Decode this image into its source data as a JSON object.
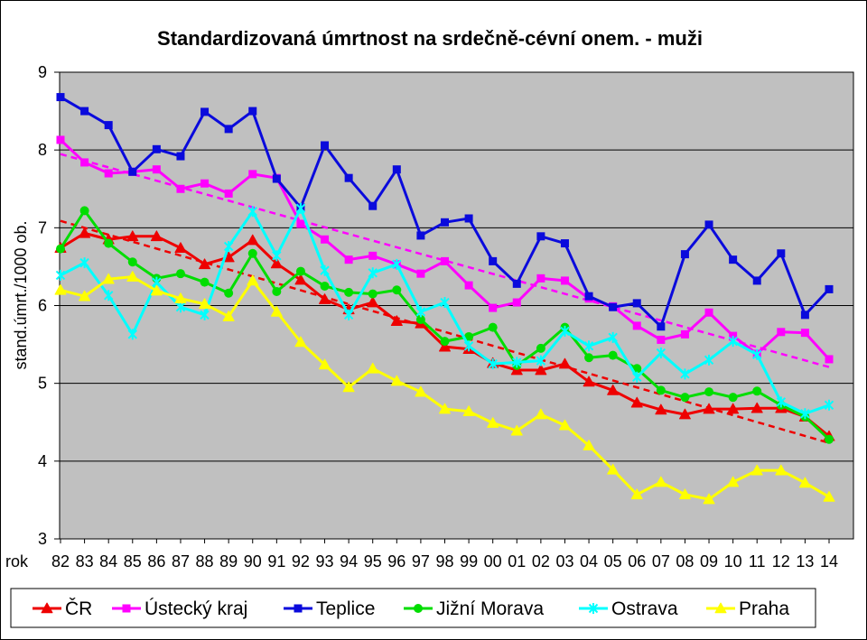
{
  "chart_data": {
    "type": "line",
    "title": "Standardizovaná úmrtnost na srdečně-cévní onem. - muži",
    "xlabel": "rok",
    "ylabel": "stand.úmrt./1000 ob.",
    "ylim": [
      3,
      9
    ],
    "yticks": [
      3,
      4,
      5,
      6,
      7,
      8,
      9
    ],
    "grid": true,
    "legend_position": "bottom",
    "plot_background": "#C0C0C0",
    "categories": [
      "82",
      "83",
      "84",
      "85",
      "86",
      "87",
      "88",
      "89",
      "90",
      "91",
      "92",
      "93",
      "94",
      "95",
      "96",
      "97",
      "98",
      "99",
      "00",
      "01",
      "02",
      "03",
      "04",
      "05",
      "06",
      "07",
      "08",
      "09",
      "10",
      "11",
      "12",
      "13",
      "14"
    ],
    "series": [
      {
        "name": "ČR",
        "color": "#EE0000",
        "marker": "triangle",
        "trendline": "linear",
        "values": [
          6.74,
          6.93,
          6.85,
          6.89,
          6.89,
          6.74,
          6.53,
          6.62,
          6.84,
          6.54,
          6.33,
          6.08,
          5.95,
          6.04,
          5.8,
          5.77,
          5.47,
          5.44,
          5.26,
          5.17,
          5.17,
          5.25,
          5.02,
          4.91,
          4.75,
          4.66,
          4.6,
          4.67,
          4.67,
          4.68,
          4.68,
          4.57,
          4.32
        ]
      },
      {
        "name": "Ústecký kraj",
        "color": "#FF00FF",
        "marker": "square",
        "trendline": "linear",
        "values": [
          8.13,
          7.84,
          7.7,
          7.72,
          7.75,
          7.5,
          7.57,
          7.44,
          7.69,
          7.64,
          7.05,
          6.85,
          6.59,
          6.64,
          6.53,
          6.41,
          6.57,
          6.26,
          5.97,
          6.04,
          6.35,
          6.32,
          6.09,
          5.99,
          5.74,
          5.56,
          5.63,
          5.91,
          5.61,
          5.38,
          5.66,
          5.65,
          5.31
        ]
      },
      {
        "name": "Teplice",
        "color": "#0A0ADC",
        "marker": "square",
        "values": [
          8.68,
          8.5,
          8.32,
          7.72,
          8.01,
          7.92,
          8.49,
          8.27,
          8.5,
          7.63,
          7.26,
          8.06,
          7.64,
          7.28,
          7.75,
          6.9,
          7.07,
          7.12,
          6.57,
          6.28,
          6.89,
          6.8,
          6.12,
          5.98,
          6.03,
          5.73,
          6.66,
          7.04,
          6.59,
          6.32,
          6.67,
          5.88,
          6.21
        ]
      },
      {
        "name": "Jižní Morava",
        "color": "#00DD00",
        "marker": "circle",
        "values": [
          6.73,
          7.22,
          6.8,
          6.56,
          6.35,
          6.41,
          6.3,
          6.16,
          6.67,
          6.18,
          6.44,
          6.25,
          6.17,
          6.15,
          6.2,
          5.82,
          5.54,
          5.6,
          5.72,
          5.23,
          5.45,
          5.72,
          5.33,
          5.36,
          5.19,
          4.91,
          4.82,
          4.89,
          4.82,
          4.9,
          4.72,
          4.57,
          4.28
        ]
      },
      {
        "name": "Ostrava",
        "color": "#00FFFF",
        "marker": "star",
        "values": [
          6.39,
          6.55,
          6.13,
          5.63,
          6.3,
          5.98,
          5.88,
          6.76,
          7.21,
          6.64,
          7.25,
          6.45,
          5.88,
          6.42,
          6.53,
          5.92,
          6.04,
          5.48,
          5.25,
          5.27,
          5.29,
          5.67,
          5.48,
          5.59,
          5.08,
          5.39,
          5.12,
          5.3,
          5.54,
          5.37,
          4.76,
          4.61,
          4.72
        ]
      },
      {
        "name": "Praha",
        "color": "#FFFF00",
        "marker": "triangle",
        "values": [
          6.2,
          6.12,
          6.34,
          6.37,
          6.19,
          6.09,
          6.02,
          5.86,
          6.32,
          5.92,
          5.53,
          5.24,
          4.95,
          5.19,
          5.03,
          4.89,
          4.67,
          4.64,
          4.49,
          4.39,
          4.6,
          4.46,
          4.2,
          3.89,
          3.57,
          3.73,
          3.57,
          3.51,
          3.73,
          3.88,
          3.88,
          3.72,
          3.54
        ]
      }
    ]
  }
}
